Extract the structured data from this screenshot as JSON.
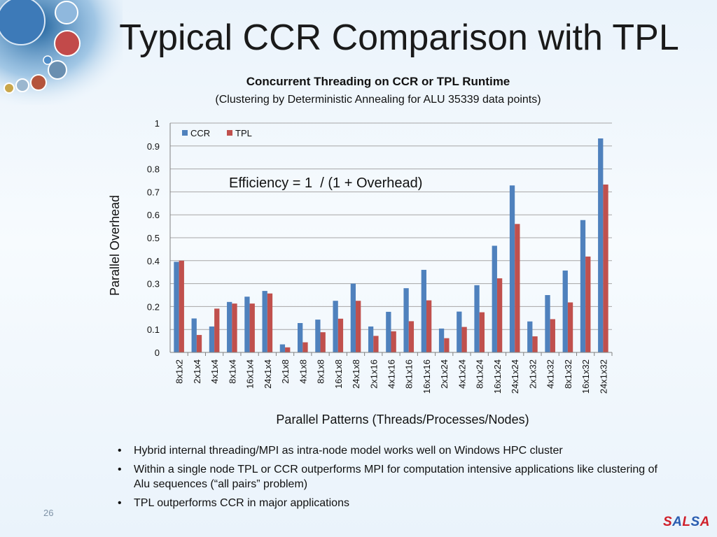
{
  "slide": {
    "title": "Typical CCR Comparison with TPL",
    "page_number": "26",
    "logo": {
      "text": "SALSA",
      "letters": [
        "S",
        "A",
        "L",
        "S",
        "A"
      ],
      "colors": [
        "#d0202a",
        "#2a5db0",
        "#d0202a",
        "#2a5db0",
        "#d0202a"
      ]
    }
  },
  "bullets": [
    "Hybrid internal threading/MPI as intra-node model works well on Windows HPC cluster",
    "Within a single node TPL or CCR outperforms MPI for computation intensive applications like clustering of Alu sequences (“all pairs” problem)",
    "TPL outperforms CCR in major applications"
  ],
  "chart_data": {
    "type": "bar",
    "title": "Concurrent Threading on CCR or TPL Runtime",
    "subtitle": "(Clustering by Deterministic Annealing for ALU 35339 data points)",
    "xlabel": "Parallel Patterns (Threads/Processes/Nodes)",
    "ylabel": "Parallel Overhead",
    "ylim": [
      0,
      1
    ],
    "yticks": [
      "0",
      "0.1",
      "0.2",
      "0.3",
      "0.4",
      "0.5",
      "0.6",
      "0.7",
      "0.8",
      "0.9",
      "1"
    ],
    "grid": true,
    "legend_position": "top-left",
    "annotation": "Efficiency = 1  / (1 + Overhead)",
    "categories": [
      "8x1x2",
      "2x1x4",
      "4x1x4",
      "8x1x4",
      "16x1x4",
      "24x1x4",
      "2x1x8",
      "4x1x8",
      "8x1x8",
      "16x1x8",
      "24x1x8",
      "2x1x16",
      "4x1x16",
      "8x1x16",
      "16x1x16",
      "2x1x24",
      "4x1x24",
      "8x1x24",
      "16x1x24",
      "24x1x24",
      "2x1x32",
      "4x1x32",
      "8x1x32",
      "16x1x32",
      "24x1x32"
    ],
    "series": [
      {
        "name": "CCR",
        "color": "#4f81bd",
        "values": [
          0.395,
          0.148,
          0.113,
          0.22,
          0.243,
          0.268,
          0.035,
          0.128,
          0.143,
          0.225,
          0.3,
          0.113,
          0.177,
          0.28,
          0.36,
          0.104,
          0.178,
          0.293,
          0.465,
          0.728,
          0.135,
          0.25,
          0.357,
          0.577,
          0.933
        ]
      },
      {
        "name": "TPL",
        "color": "#c0504d",
        "values": [
          0.4,
          0.076,
          0.191,
          0.213,
          0.213,
          0.257,
          0.022,
          0.044,
          0.088,
          0.147,
          0.225,
          0.072,
          0.092,
          0.136,
          0.227,
          0.062,
          0.111,
          0.175,
          0.323,
          0.56,
          0.07,
          0.145,
          0.218,
          0.418,
          0.732
        ]
      }
    ]
  }
}
